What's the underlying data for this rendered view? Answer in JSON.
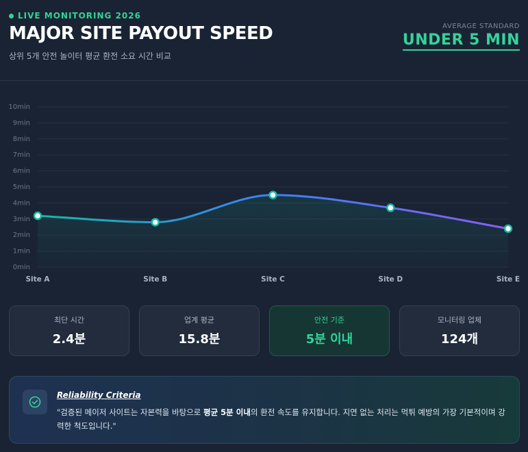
{
  "header": {
    "live_label": "LIVE MONITORING 2026",
    "title": "MAJOR SITE PAYOUT SPEED",
    "subtitle": "상위 5개 안전 놀이터 평균 환전 소요 시간 비교",
    "avg_label": "AVERAGE STANDARD",
    "avg_value": "UNDER 5 MIN"
  },
  "colors": {
    "accent": "#34d399",
    "line_start": "#14b8a6",
    "line_mid": "#3b82f6",
    "line_end": "#8b5cf6",
    "background": "#1a2333"
  },
  "chart_data": {
    "type": "line",
    "categories": [
      "Site A",
      "Site B",
      "Site C",
      "Site D",
      "Site E"
    ],
    "values": [
      3.2,
      2.8,
      4.5,
      3.7,
      2.4
    ],
    "ylim": [
      0,
      10
    ],
    "yticks": [
      "0min",
      "1min",
      "2min",
      "3min",
      "4min",
      "5min",
      "6min",
      "7min",
      "8min",
      "9min",
      "10min"
    ],
    "grid": true,
    "smooth": true,
    "area_fill": true
  },
  "stats": [
    {
      "label": "최단 시간",
      "value": "2.4분"
    },
    {
      "label": "업계 평균",
      "value": "15.8분"
    },
    {
      "label": "안전 기준",
      "value": "5분 이내"
    },
    {
      "label": "모니터링 업체",
      "value": "124개"
    }
  ],
  "criteria": {
    "icon": "check-circle-icon",
    "title": "Reliability Criteria",
    "text_before": "\"검증된 메이저 사이트는 자본력을 바탕으로 ",
    "text_bold": "평균 5분 이내",
    "text_after": "의 환전 속도를 유지합니다. 지연 없는 처리는 먹튀 예방의 가장 기본적이며 강력한 척도입니다.\""
  }
}
